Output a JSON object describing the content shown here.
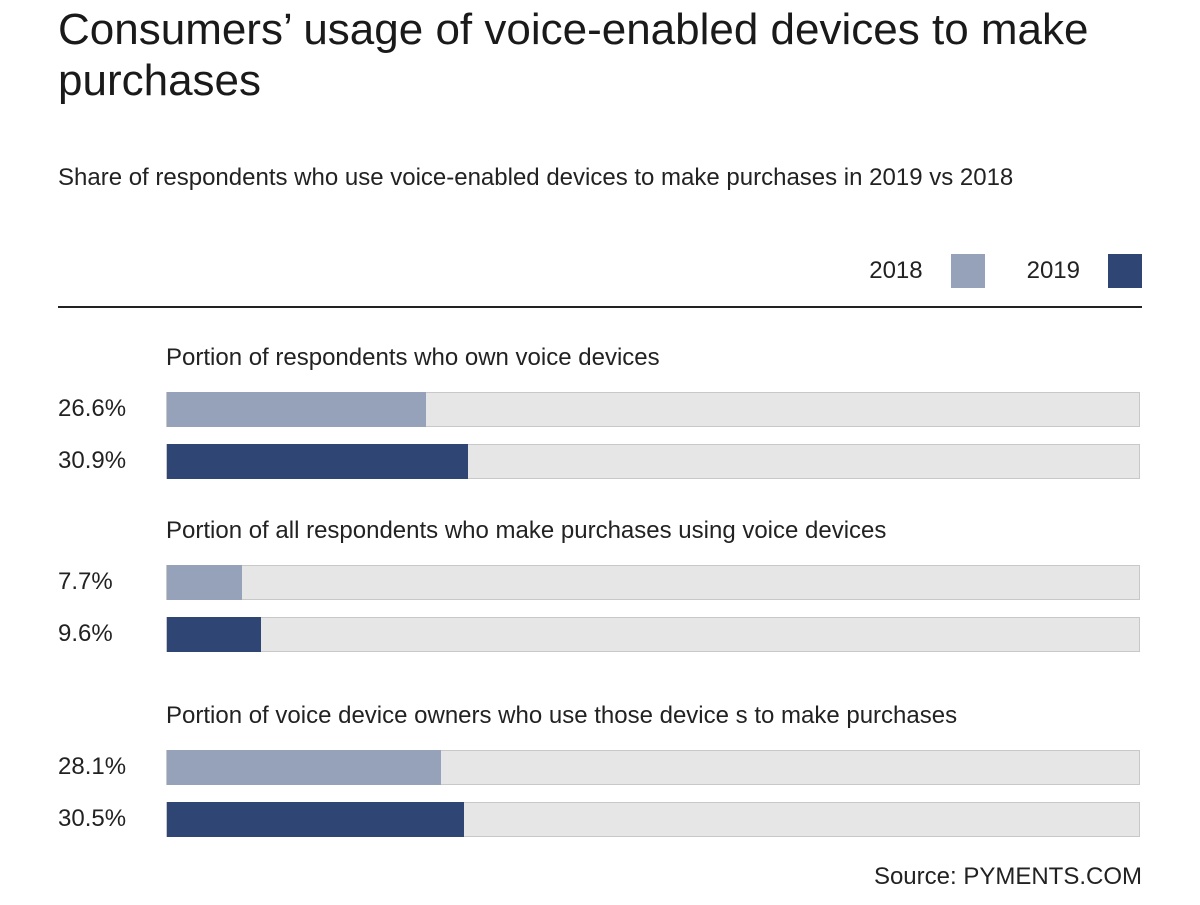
{
  "title": "Consumers’ usage of voice-enabled devices to make purchases",
  "subtitle": "Share  of respondents who use voice-enabled devices to make purchases in 2019 vs 2018",
  "legend": {
    "items": [
      {
        "label": "2018",
        "color": "#96a1ba"
      },
      {
        "label": "2019",
        "color": "#2f4573"
      }
    ]
  },
  "source": "Source: PYMENTS.COM",
  "chart_data": {
    "type": "bar",
    "orientation": "horizontal",
    "xlim": [
      0,
      100
    ],
    "unit": "%",
    "grid": false,
    "legend_position": "top-right",
    "track_color": "#e6e6e6",
    "groups": [
      {
        "title": "Portion of respondents who own voice devices",
        "bars": [
          {
            "series": "2018",
            "value": 26.6,
            "label": "26.6%"
          },
          {
            "series": "2019",
            "value": 30.9,
            "label": "30.9%"
          }
        ]
      },
      {
        "title": "Portion of all respondents who make purchases using voice devices",
        "bars": [
          {
            "series": "2018",
            "value": 7.7,
            "label": "7.7%"
          },
          {
            "series": "2019",
            "value": 9.6,
            "label": "9.6%"
          }
        ]
      },
      {
        "title": "Portion of voice device owners who use those device s to make purchases",
        "bars": [
          {
            "series": "2018",
            "value": 28.1,
            "label": "28.1%"
          },
          {
            "series": "2019",
            "value": 30.5,
            "label": "30.5%"
          }
        ]
      }
    ]
  }
}
